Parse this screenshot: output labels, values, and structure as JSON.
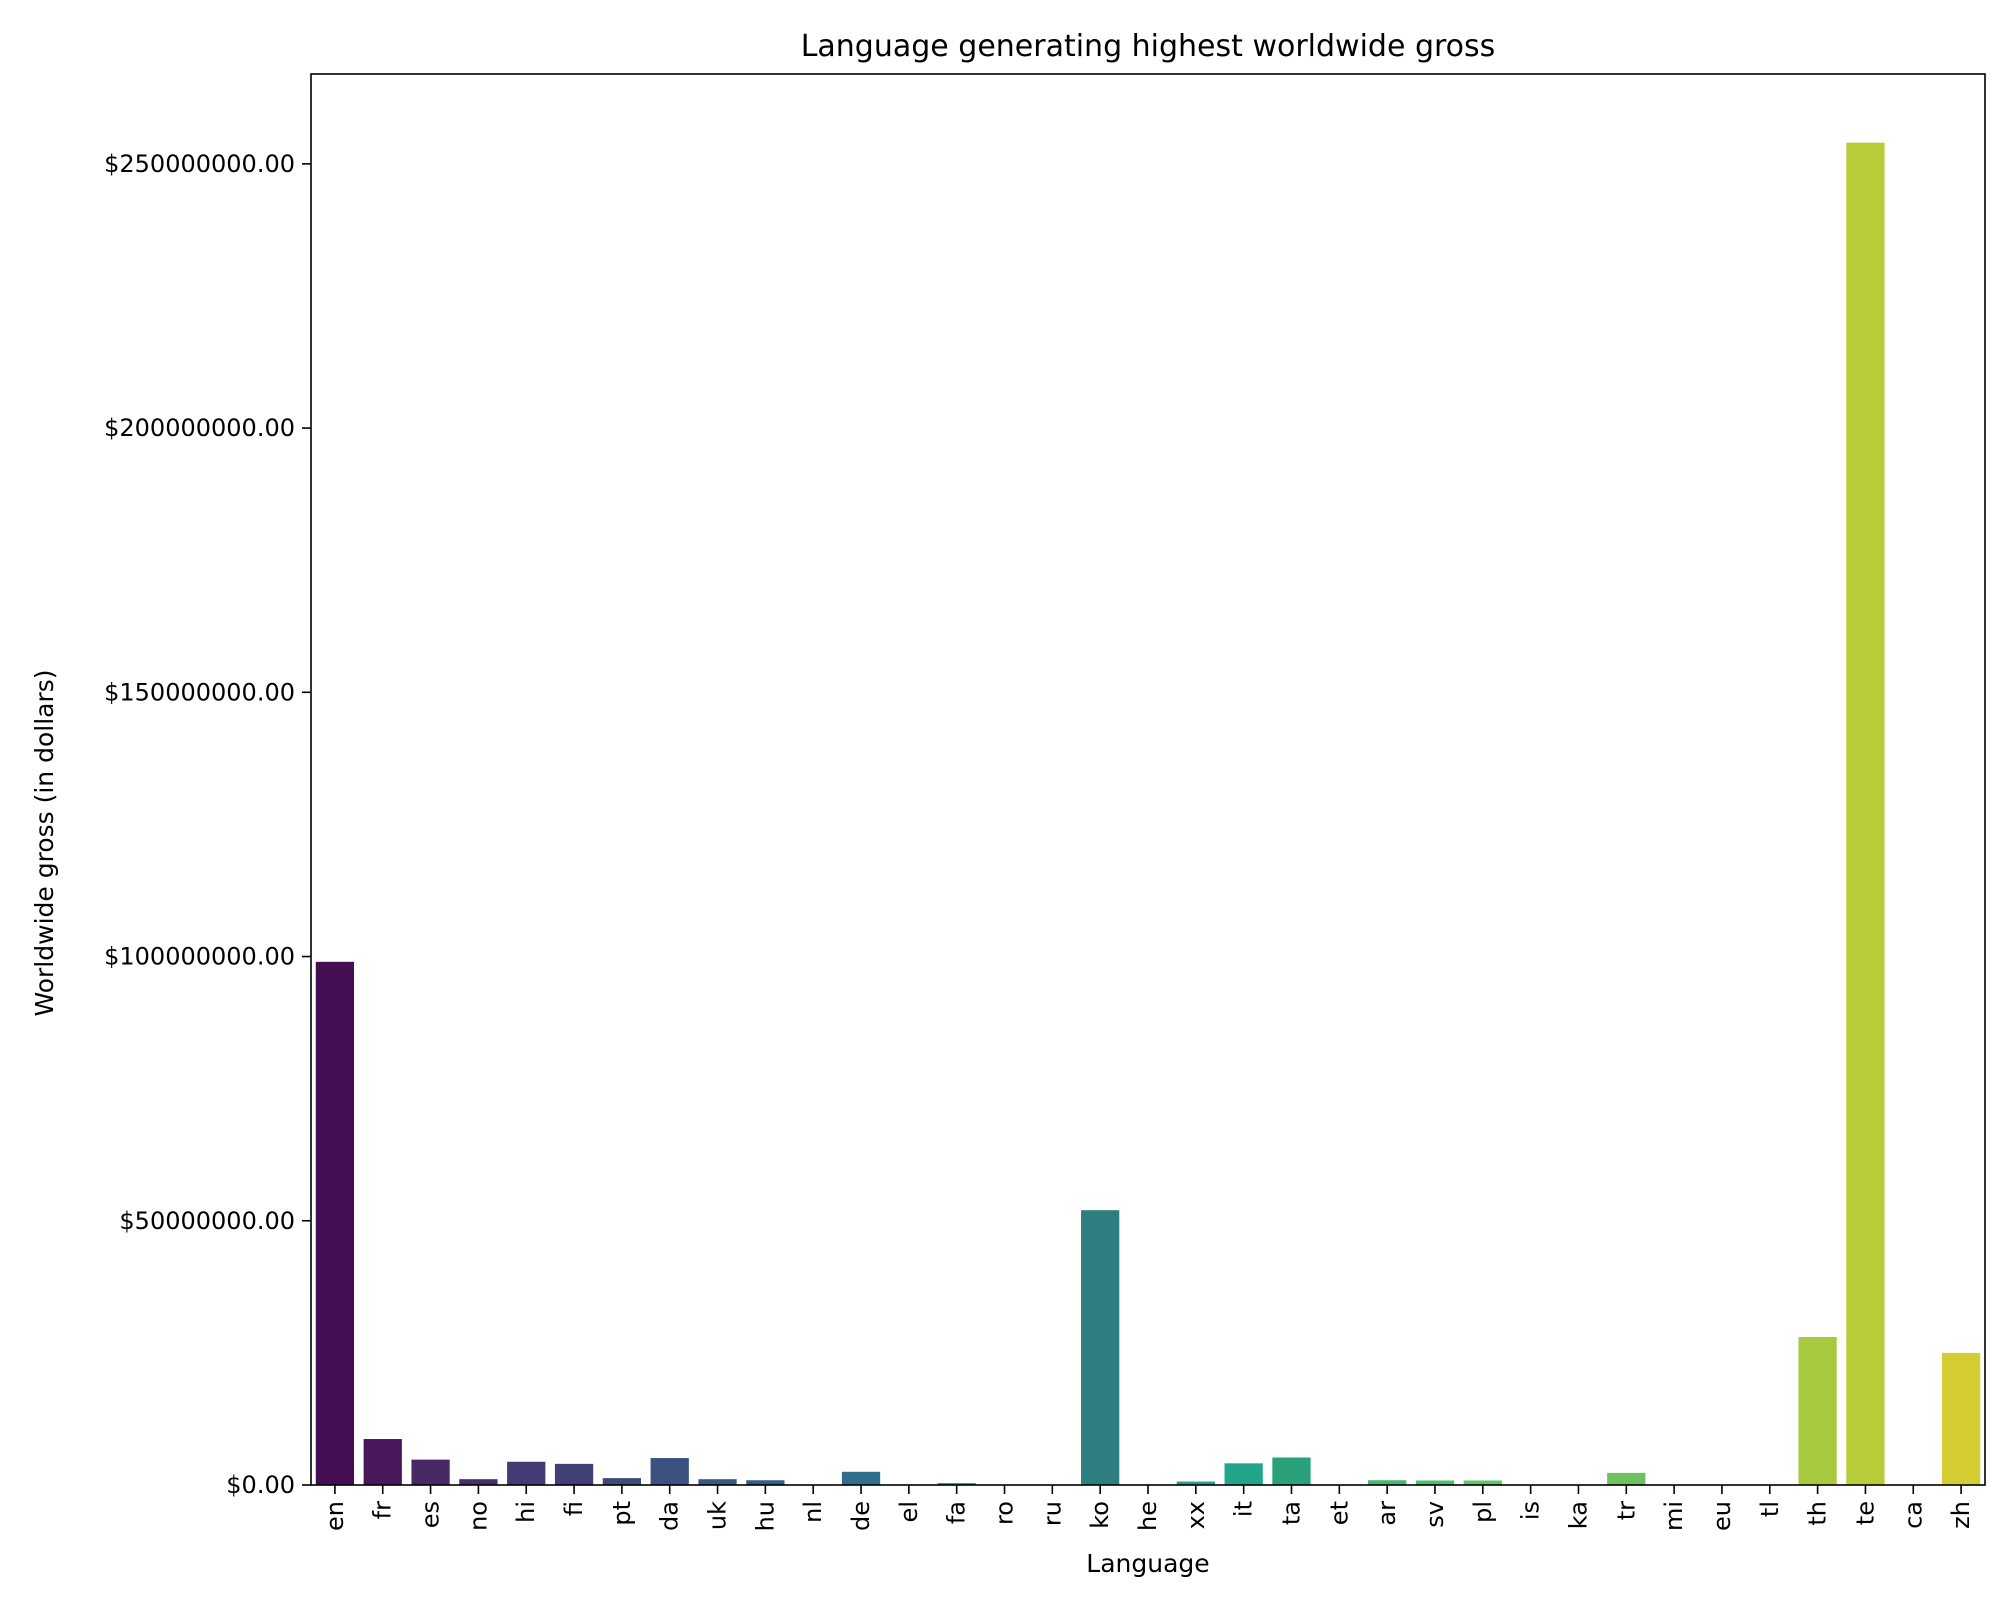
{
  "chart_data": {
    "type": "bar",
    "title": "Language generating highest worldwide gross",
    "xlabel": "Language",
    "ylabel": "Worldwide gross (in dollars)",
    "ylim": [
      0,
      267000000
    ],
    "yticks": [
      0,
      50000000,
      100000000,
      150000000,
      200000000,
      250000000
    ],
    "ytick_labels": [
      "$0.00",
      "$50000000.00",
      "$100000000.00",
      "$150000000.00",
      "$200000000.00",
      "$250000000.00"
    ],
    "grid": false,
    "categories": [
      "en",
      "fr",
      "es",
      "no",
      "hi",
      "fi",
      "pt",
      "da",
      "uk",
      "hu",
      "nl",
      "de",
      "el",
      "fa",
      "ro",
      "ru",
      "ko",
      "he",
      "xx",
      "it",
      "ta",
      "et",
      "ar",
      "sv",
      "pl",
      "is",
      "ka",
      "tr",
      "mi",
      "eu",
      "tl",
      "th",
      "te",
      "ca",
      "zh"
    ],
    "values": [
      99000000,
      8700000,
      4800000,
      1100000,
      4400000,
      4000000,
      1300000,
      5100000,
      1100000,
      900000,
      50000,
      2500000,
      100000,
      350000,
      50000,
      50000,
      52000000,
      100000,
      650000,
      4100000,
      5200000,
      50000,
      900000,
      850000,
      850000,
      50000,
      50000,
      2300000,
      50000,
      50000,
      50000,
      28000000,
      254000000,
      50000,
      25000000
    ],
    "colors": [
      "#440f52",
      "#48185b",
      "#472a63",
      "#462f6a",
      "#433b73",
      "#403f76",
      "#3e4b79",
      "#3c5180",
      "#395a86",
      "#365d88",
      "#33648a",
      "#316e8d",
      "#2e728e",
      "#2b7d8e",
      "#29828e",
      "#278a8e",
      "#2f7e7f",
      "#249590",
      "#21a08b",
      "#22a58a",
      "#2ba17b",
      "#35b079",
      "#44b874",
      "#4cbf6e",
      "#5ec66a",
      "#6ccc63",
      "#7ecf5d",
      "#6dc160",
      "#9ad54d",
      "#aed945",
      "#bad93e",
      "#a7c93f",
      "#b7cc36",
      "#c8d132",
      "#d4cd32"
    ]
  }
}
